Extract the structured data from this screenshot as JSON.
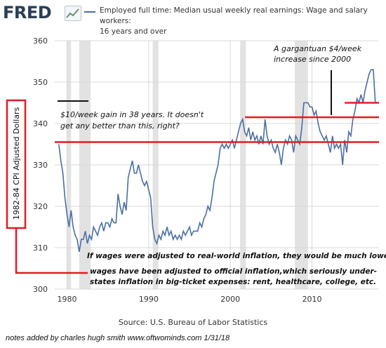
{
  "header": {
    "logo_text": "FRED",
    "legend_line1": "Employed full time: Median usual weekly real earnings: Wage and salary workers:",
    "legend_line2": "16 years and over"
  },
  "source": "Source: U.S. Bureau of Labor Statistics",
  "notes": "notes added by charles hugh smith  www.oftwominds.com   1/31/18",
  "colors": {
    "series": "#4a6fa5",
    "annotation_red": "#e31b23",
    "recession": "#e2e2e2",
    "grid": "#d8d8d8"
  },
  "chart_data": {
    "type": "line",
    "ylabel": "1982-84 CPI Adjusted Dollars",
    "xlim": [
      1978.5,
      2018.2
    ],
    "ylim": [
      300,
      360
    ],
    "xticks": [
      1980,
      1990,
      2000,
      2010
    ],
    "yticks": [
      300,
      310,
      320,
      330,
      340,
      350,
      360
    ],
    "grid": true,
    "legend_position": "top",
    "recessions": [
      [
        1980.0,
        1980.5
      ],
      [
        1981.5,
        1982.9
      ],
      [
        1990.5,
        1991.2
      ],
      [
        2001.2,
        2001.9
      ],
      [
        2007.9,
        2009.5
      ]
    ],
    "series": [
      {
        "values": [
          [
            1979.0,
            335
          ],
          [
            1979.25,
            331
          ],
          [
            1979.5,
            328
          ],
          [
            1979.75,
            322
          ],
          [
            1980.0,
            318
          ],
          [
            1980.25,
            315
          ],
          [
            1980.5,
            319
          ],
          [
            1980.75,
            315
          ],
          [
            1981.0,
            313
          ],
          [
            1981.25,
            312
          ],
          [
            1981.5,
            309
          ],
          [
            1981.75,
            312
          ],
          [
            1982.0,
            312
          ],
          [
            1982.25,
            314
          ],
          [
            1982.5,
            311
          ],
          [
            1982.75,
            313
          ],
          [
            1983.0,
            312
          ],
          [
            1983.25,
            315
          ],
          [
            1983.5,
            314
          ],
          [
            1983.75,
            313
          ],
          [
            1984.0,
            315
          ],
          [
            1984.25,
            316
          ],
          [
            1984.5,
            314
          ],
          [
            1984.75,
            316
          ],
          [
            1985.0,
            316
          ],
          [
            1985.25,
            315
          ],
          [
            1985.5,
            317
          ],
          [
            1985.75,
            316
          ],
          [
            1986.0,
            316
          ],
          [
            1986.25,
            323
          ],
          [
            1986.5,
            320
          ],
          [
            1986.75,
            318
          ],
          [
            1987.0,
            321
          ],
          [
            1987.25,
            319
          ],
          [
            1987.5,
            327
          ],
          [
            1987.75,
            329
          ],
          [
            1988.0,
            331
          ],
          [
            1988.25,
            328
          ],
          [
            1988.5,
            328
          ],
          [
            1988.75,
            330
          ],
          [
            1989.0,
            328
          ],
          [
            1989.25,
            326
          ],
          [
            1989.5,
            325
          ],
          [
            1989.75,
            326
          ],
          [
            1990.0,
            324
          ],
          [
            1990.25,
            322
          ],
          [
            1990.5,
            315
          ],
          [
            1990.75,
            312
          ],
          [
            1991.0,
            311
          ],
          [
            1991.25,
            313
          ],
          [
            1991.5,
            312
          ],
          [
            1991.75,
            314
          ],
          [
            1992.0,
            313
          ],
          [
            1992.25,
            315
          ],
          [
            1992.5,
            313
          ],
          [
            1992.75,
            314
          ],
          [
            1993.0,
            312
          ],
          [
            1993.25,
            313
          ],
          [
            1993.5,
            312
          ],
          [
            1993.75,
            313
          ],
          [
            1994.0,
            312
          ],
          [
            1994.25,
            314
          ],
          [
            1994.5,
            313
          ],
          [
            1994.75,
            314
          ],
          [
            1995.0,
            315
          ],
          [
            1995.25,
            313
          ],
          [
            1995.5,
            314
          ],
          [
            1995.75,
            314
          ],
          [
            1996.0,
            314
          ],
          [
            1996.25,
            316
          ],
          [
            1996.5,
            315
          ],
          [
            1996.75,
            317
          ],
          [
            1997.0,
            318
          ],
          [
            1997.25,
            320
          ],
          [
            1997.5,
            319
          ],
          [
            1997.75,
            322
          ],
          [
            1998.0,
            326
          ],
          [
            1998.25,
            328
          ],
          [
            1998.5,
            330
          ],
          [
            1998.75,
            334
          ],
          [
            1999.0,
            335
          ],
          [
            1999.25,
            334
          ],
          [
            1999.5,
            335
          ],
          [
            1999.75,
            334
          ],
          [
            2000.0,
            335
          ],
          [
            2000.25,
            336
          ],
          [
            2000.5,
            334
          ],
          [
            2000.75,
            336
          ],
          [
            2001.0,
            338
          ],
          [
            2001.25,
            340
          ],
          [
            2001.5,
            341
          ],
          [
            2001.75,
            338
          ],
          [
            2002.0,
            337
          ],
          [
            2002.25,
            339
          ],
          [
            2002.5,
            336
          ],
          [
            2002.75,
            338
          ],
          [
            2003.0,
            336
          ],
          [
            2003.25,
            337
          ],
          [
            2003.5,
            335
          ],
          [
            2003.75,
            337
          ],
          [
            2004.0,
            335
          ],
          [
            2004.25,
            341
          ],
          [
            2004.5,
            337
          ],
          [
            2004.75,
            335
          ],
          [
            2005.0,
            336
          ],
          [
            2005.25,
            334
          ],
          [
            2005.5,
            333
          ],
          [
            2005.75,
            335
          ],
          [
            2006.0,
            333
          ],
          [
            2006.25,
            330
          ],
          [
            2006.5,
            334
          ],
          [
            2006.75,
            336
          ],
          [
            2007.0,
            335
          ],
          [
            2007.25,
            337
          ],
          [
            2007.5,
            336
          ],
          [
            2007.75,
            333
          ],
          [
            2008.0,
            337
          ],
          [
            2008.25,
            336
          ],
          [
            2008.5,
            335
          ],
          [
            2008.75,
            339
          ],
          [
            2009.0,
            345
          ],
          [
            2009.25,
            345
          ],
          [
            2009.5,
            345
          ],
          [
            2009.75,
            344
          ],
          [
            2010.0,
            344
          ],
          [
            2010.25,
            342
          ],
          [
            2010.5,
            343
          ],
          [
            2010.75,
            340
          ],
          [
            2011.0,
            338
          ],
          [
            2011.25,
            337
          ],
          [
            2011.5,
            336
          ],
          [
            2011.75,
            337
          ],
          [
            2012.0,
            335
          ],
          [
            2012.25,
            333
          ],
          [
            2012.5,
            337
          ],
          [
            2012.75,
            334
          ],
          [
            2013.0,
            335
          ],
          [
            2013.25,
            334
          ],
          [
            2013.5,
            335
          ],
          [
            2013.75,
            330
          ],
          [
            2014.0,
            336
          ],
          [
            2014.25,
            333
          ],
          [
            2014.5,
            338
          ],
          [
            2014.75,
            337
          ],
          [
            2015.0,
            341
          ],
          [
            2015.25,
            343
          ],
          [
            2015.5,
            346
          ],
          [
            2015.75,
            345
          ],
          [
            2016.0,
            347
          ],
          [
            2016.25,
            345
          ],
          [
            2016.5,
            348
          ],
          [
            2016.75,
            350
          ],
          [
            2017.0,
            352
          ],
          [
            2017.25,
            353
          ],
          [
            2017.5,
            353
          ],
          [
            2017.75,
            345
          ]
        ]
      }
    ],
    "annotations": {
      "gain_text_line1": "$10/week gain in 38 years. It doesn't",
      "gain_text_line2": "get any better than this, right?",
      "gargantuan_line1": "A gargantuan $4/week",
      "gargantuan_line2": "increase since 2000",
      "inflation_line1": "If wages were adjusted to real-world inflation, they would be much lower.",
      "inflation_line2": "wages have been adjusted to official inflation,which seriously under-",
      "inflation_line3": "states inflation in big-ticket expenses: rent, healthcare, college, etc."
    },
    "reference_lines": [
      {
        "y": 335.5,
        "x_from": 1978.5,
        "x_to": 2018.2
      },
      {
        "y": 341.5,
        "x_from": 2001.8,
        "x_to": 2018.2
      },
      {
        "y": 345.0,
        "x_from": 2014.0,
        "x_to": 2018.2
      }
    ]
  }
}
